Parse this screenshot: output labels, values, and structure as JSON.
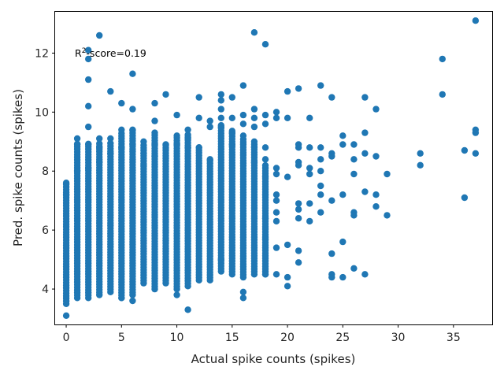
{
  "chart_data": {
    "type": "scatter",
    "xlabel": "Actual spike counts (spikes)",
    "ylabel": "Pred. spike counts (spikes)",
    "annotation": {
      "prefix": "R",
      "superscript": "2",
      "suffix": "-score=0.19"
    },
    "xlim": [
      -1,
      38.5
    ],
    "ylim": [
      2.8,
      13.4
    ],
    "xticks": [
      0,
      5,
      10,
      15,
      20,
      25,
      30,
      35
    ],
    "yticks": [
      4,
      6,
      8,
      10,
      12
    ],
    "grid": false,
    "marker_color": "#1f77b4",
    "dense_bands": [
      {
        "x": 0,
        "ymin": 3.5,
        "ymax": 7.6
      },
      {
        "x": 1,
        "ymin": 3.7,
        "ymax": 9.0
      },
      {
        "x": 2,
        "ymin": 3.7,
        "ymax": 9.0
      },
      {
        "x": 3,
        "ymin": 3.8,
        "ymax": 9.0
      },
      {
        "x": 4,
        "ymin": 3.9,
        "ymax": 9.0
      },
      {
        "x": 5,
        "ymin": 3.7,
        "ymax": 9.3
      },
      {
        "x": 6,
        "ymin": 3.8,
        "ymax": 9.4
      },
      {
        "x": 7,
        "ymin": 4.2,
        "ymax": 8.9
      },
      {
        "x": 8,
        "ymin": 4.0,
        "ymax": 9.3
      },
      {
        "x": 9,
        "ymin": 4.2,
        "ymax": 8.9
      },
      {
        "x": 10,
        "ymin": 4.0,
        "ymax": 9.2
      },
      {
        "x": 11,
        "ymin": 4.1,
        "ymax": 9.3
      },
      {
        "x": 12,
        "ymin": 4.3,
        "ymax": 8.8
      },
      {
        "x": 13,
        "ymin": 4.3,
        "ymax": 8.4
      },
      {
        "x": 14,
        "ymin": 4.6,
        "ymax": 9.6
      },
      {
        "x": 15,
        "ymin": 4.5,
        "ymax": 9.4
      },
      {
        "x": 16,
        "ymin": 4.4,
        "ymax": 9.1
      },
      {
        "x": 17,
        "ymin": 4.5,
        "ymax": 9.0
      },
      {
        "x": 18,
        "ymin": 4.5,
        "ymax": 8.2
      }
    ],
    "points": [
      [
        0,
        3.1
      ],
      [
        0,
        7.2
      ],
      [
        0,
        7.6
      ],
      [
        1,
        9.1
      ],
      [
        1,
        8.9
      ],
      [
        1,
        8.0
      ],
      [
        2,
        11.8
      ],
      [
        2,
        11.1
      ],
      [
        2,
        10.2
      ],
      [
        2,
        9.5
      ],
      [
        2,
        8.9
      ],
      [
        2,
        8.1
      ],
      [
        2,
        12.1
      ],
      [
        3,
        12.6
      ],
      [
        3,
        9.1
      ],
      [
        3,
        8.8
      ],
      [
        3,
        8.3
      ],
      [
        4,
        10.7
      ],
      [
        4,
        8.6
      ],
      [
        4,
        9.1
      ],
      [
        5,
        10.3
      ],
      [
        5,
        9.4
      ],
      [
        5,
        8.8
      ],
      [
        5,
        3.7
      ],
      [
        6,
        11.3
      ],
      [
        6,
        10.1
      ],
      [
        6,
        9.4
      ],
      [
        6,
        8.9
      ],
      [
        6,
        3.6
      ],
      [
        7,
        8.6
      ],
      [
        7,
        8.2
      ],
      [
        7,
        9.0
      ],
      [
        8,
        10.3
      ],
      [
        8,
        9.7
      ],
      [
        8,
        9.3
      ],
      [
        8,
        8.9
      ],
      [
        8,
        8.5
      ],
      [
        9,
        10.6
      ],
      [
        9,
        8.9
      ],
      [
        10,
        9.9
      ],
      [
        10,
        9.2
      ],
      [
        10,
        8.9
      ],
      [
        10,
        3.8
      ],
      [
        11,
        9.4
      ],
      [
        11,
        9.1
      ],
      [
        11,
        8.8
      ],
      [
        11,
        3.3
      ],
      [
        12,
        10.5
      ],
      [
        12,
        9.8
      ],
      [
        12,
        8.8
      ],
      [
        13,
        9.7
      ],
      [
        13,
        9.5
      ],
      [
        13,
        8.4
      ],
      [
        14,
        10.6
      ],
      [
        14,
        10.4
      ],
      [
        14,
        10.1
      ],
      [
        14,
        9.8
      ],
      [
        14,
        9.5
      ],
      [
        14,
        5.0
      ],
      [
        15,
        10.5
      ],
      [
        15,
        9.8
      ],
      [
        15,
        9.3
      ],
      [
        15,
        8.9
      ],
      [
        16,
        10.9
      ],
      [
        16,
        9.9
      ],
      [
        16,
        9.6
      ],
      [
        16,
        9.2
      ],
      [
        16,
        3.9
      ],
      [
        16,
        3.7
      ],
      [
        17,
        12.7
      ],
      [
        17,
        10.1
      ],
      [
        17,
        9.8
      ],
      [
        17,
        9.5
      ],
      [
        17,
        8.8
      ],
      [
        17,
        8.3
      ],
      [
        18,
        12.3
      ],
      [
        18,
        9.9
      ],
      [
        18,
        9.6
      ],
      [
        18,
        8.8
      ],
      [
        18,
        8.4
      ],
      [
        18,
        7.8
      ],
      [
        18,
        7.2
      ],
      [
        18,
        6.4
      ],
      [
        18,
        5.7
      ],
      [
        18,
        4.5
      ],
      [
        19,
        10.0
      ],
      [
        19,
        9.8
      ],
      [
        19,
        8.1
      ],
      [
        19,
        7.9
      ],
      [
        19,
        7.2
      ],
      [
        19,
        7.0
      ],
      [
        19,
        6.6
      ],
      [
        19,
        6.3
      ],
      [
        19,
        5.4
      ],
      [
        19,
        4.5
      ],
      [
        20,
        10.7
      ],
      [
        20,
        9.8
      ],
      [
        20,
        7.8
      ],
      [
        20,
        5.5
      ],
      [
        20,
        4.4
      ],
      [
        20,
        4.1
      ],
      [
        21,
        10.8
      ],
      [
        21,
        8.9
      ],
      [
        21,
        8.8
      ],
      [
        21,
        8.3
      ],
      [
        21,
        8.2
      ],
      [
        21,
        6.9
      ],
      [
        21,
        6.7
      ],
      [
        21,
        6.4
      ],
      [
        21,
        5.3
      ],
      [
        21,
        4.9
      ],
      [
        22,
        9.8
      ],
      [
        22,
        8.8
      ],
      [
        22,
        8.1
      ],
      [
        22,
        7.9
      ],
      [
        22,
        6.9
      ],
      [
        22,
        6.3
      ],
      [
        23,
        10.9
      ],
      [
        23,
        8.8
      ],
      [
        23,
        8.4
      ],
      [
        23,
        8.0
      ],
      [
        23,
        7.5
      ],
      [
        23,
        7.2
      ],
      [
        23,
        6.6
      ],
      [
        24,
        10.5
      ],
      [
        24,
        8.6
      ],
      [
        24,
        8.5
      ],
      [
        24,
        7.0
      ],
      [
        24,
        5.2
      ],
      [
        24,
        4.5
      ],
      [
        24,
        4.4
      ],
      [
        25,
        9.2
      ],
      [
        25,
        8.9
      ],
      [
        25,
        7.2
      ],
      [
        25,
        5.6
      ],
      [
        25,
        4.4
      ],
      [
        26,
        8.9
      ],
      [
        26,
        8.4
      ],
      [
        26,
        7.9
      ],
      [
        26,
        6.6
      ],
      [
        26,
        6.5
      ],
      [
        26,
        4.7
      ],
      [
        27,
        10.5
      ],
      [
        27,
        9.3
      ],
      [
        27,
        8.6
      ],
      [
        27,
        7.3
      ],
      [
        27,
        4.5
      ],
      [
        28,
        10.1
      ],
      [
        28,
        8.5
      ],
      [
        28,
        7.2
      ],
      [
        28,
        6.8
      ],
      [
        29,
        7.9
      ],
      [
        29,
        6.5
      ],
      [
        32,
        8.6
      ],
      [
        32,
        8.2
      ],
      [
        34,
        11.8
      ],
      [
        34,
        10.6
      ],
      [
        36,
        8.7
      ],
      [
        36,
        7.1
      ],
      [
        37,
        13.1
      ],
      [
        37,
        9.4
      ],
      [
        37,
        9.3
      ],
      [
        37,
        8.6
      ]
    ]
  }
}
